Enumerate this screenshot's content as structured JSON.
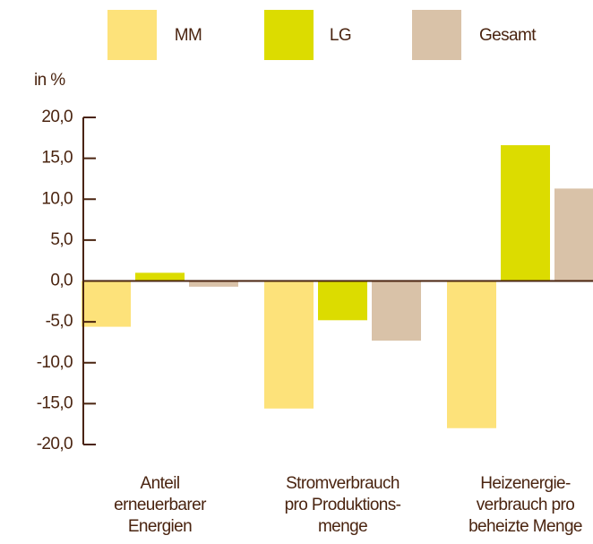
{
  "chart_data": {
    "type": "bar",
    "y_label": "in %",
    "categories": [
      [
        "Anteil",
        "erneuerbarer",
        "Energien"
      ],
      [
        "Stromverbrauch",
        "pro Produktions-",
        "menge"
      ],
      [
        "Heizenergie-",
        "verbrauch pro",
        "beheizte Menge"
      ]
    ],
    "series": [
      {
        "name": "MM",
        "color": "#fde27a",
        "values": [
          -5.6,
          -15.6,
          -18.0
        ]
      },
      {
        "name": "LG",
        "color": "#dcdc00",
        "values": [
          1.0,
          -4.8,
          16.6
        ]
      },
      {
        "name": "Gesamt",
        "color": "#d9c2a8",
        "values": [
          -0.7,
          -7.3,
          11.3
        ]
      }
    ],
    "ylim": [
      -20,
      20
    ],
    "yticks": [
      {
        "value": -20,
        "label": "-20,0"
      },
      {
        "value": -15,
        "label": "-15,0"
      },
      {
        "value": -10,
        "label": "-10,0"
      },
      {
        "value": -5,
        "label": "-5,0"
      },
      {
        "value": 0,
        "label": "0,0"
      },
      {
        "value": 5,
        "label": "5,0"
      },
      {
        "value": 10,
        "label": "10,0"
      },
      {
        "value": 15,
        "label": "15,0"
      },
      {
        "value": 20,
        "label": "20,0"
      }
    ],
    "legend": "top"
  }
}
